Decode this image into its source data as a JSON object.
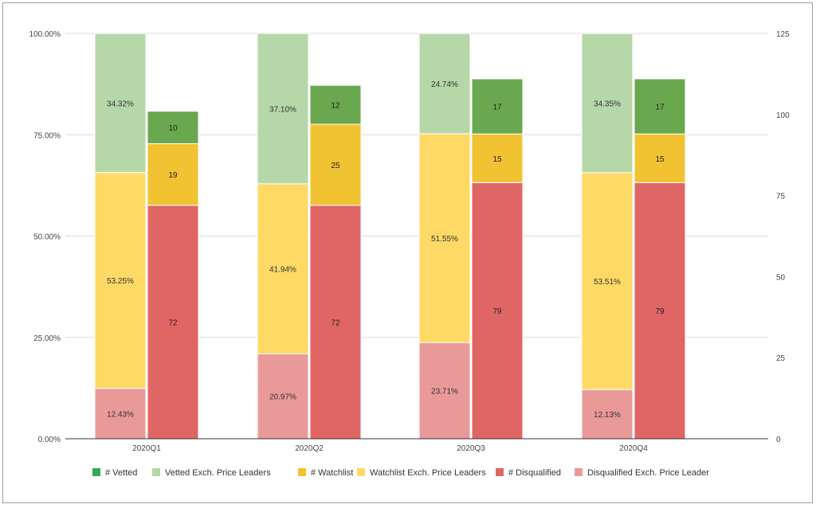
{
  "chart_data": {
    "type": "bar",
    "categories": [
      "2020Q1",
      "2020Q2",
      "2020Q3",
      "2020Q4"
    ],
    "left_axis": {
      "ticks": [
        "0.00%",
        "25.00%",
        "50.00%",
        "75.00%",
        "100.00%"
      ],
      "range": [
        0,
        100
      ],
      "unit": "%"
    },
    "right_axis": {
      "ticks": [
        "0",
        "25",
        "50",
        "75",
        "100",
        "125"
      ],
      "range": [
        0,
        125
      ]
    },
    "grid": true,
    "legend_position": "bottom",
    "percent_series": [
      {
        "name": "Disqualified Exch. Price Leader",
        "color": "#ea9999",
        "values": [
          12.43,
          20.97,
          23.71,
          12.13
        ],
        "labels": [
          "12.43%",
          "20.97%",
          "23.71%",
          "12.13%"
        ]
      },
      {
        "name": "Watchlist Exch. Price Leaders",
        "color": "#ffd966",
        "values": [
          53.25,
          41.94,
          51.55,
          53.51
        ],
        "labels": [
          "53.25%",
          "41.94%",
          "51.55%",
          "53.51%"
        ]
      },
      {
        "name": "Vetted Exch. Price Leaders",
        "color": "#b6d7a8",
        "values": [
          34.32,
          37.1,
          24.74,
          34.35
        ],
        "labels": [
          "34.32%",
          "37.10%",
          "24.74%",
          "34.35%"
        ]
      }
    ],
    "count_series": [
      {
        "name": "# Disqualified",
        "color": "#e06666",
        "values": [
          72,
          72,
          79,
          79
        ],
        "labels": [
          "72",
          "72",
          "79",
          "79"
        ]
      },
      {
        "name": "# Watchlist",
        "color": "#f1c232",
        "values": [
          19,
          25,
          15,
          15
        ],
        "labels": [
          "19",
          "25",
          "15",
          "15"
        ]
      },
      {
        "name": "# Vetted",
        "color": "#6aa84f",
        "values": [
          10,
          12,
          17,
          17
        ],
        "labels": [
          "10",
          "12",
          "17",
          "17"
        ]
      }
    ],
    "legend": [
      {
        "name": "# Vetted",
        "color": "#34a853"
      },
      {
        "name": "Vetted Exch. Price Leaders",
        "color": "#b6d7a8"
      },
      {
        "name": "# Watchlist",
        "color": "#f1c232"
      },
      {
        "name": "Watchlist Exch. Price Leaders",
        "color": "#ffd966"
      },
      {
        "name": "# Disqualified",
        "color": "#e06666"
      },
      {
        "name": "Disqualified Exch. Price Leader",
        "color": "#ea9999"
      }
    ]
  }
}
